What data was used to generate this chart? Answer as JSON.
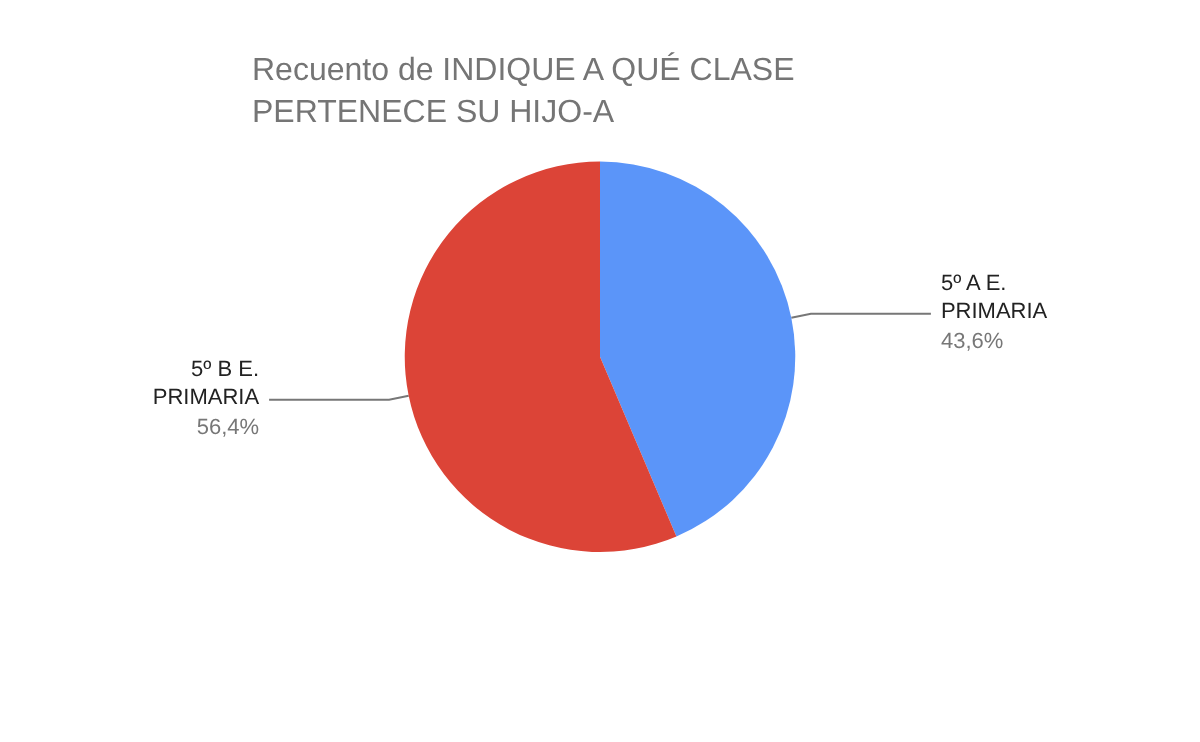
{
  "chart_data": {
    "type": "pie",
    "title": "Recuento de INDIQUE A QUÉ CLASE PERTENECE SU HIJO-A",
    "categories": [
      "5º A E. PRIMARIA",
      "5º B E. PRIMARIA"
    ],
    "values": [
      43.6,
      56.4
    ],
    "colors": [
      "#5b95f9",
      "#dc4437"
    ],
    "value_labels": [
      "43,6%",
      "56,4%"
    ],
    "legend": false
  }
}
